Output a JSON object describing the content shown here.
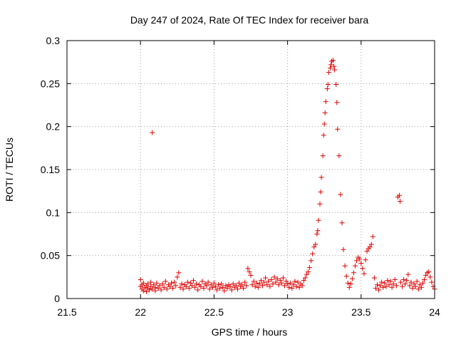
{
  "chart_data": {
    "type": "scatter",
    "title": "Day 247 of 2024, Rate Of TEC Index for receiver bara",
    "xlabel": "GPS time / hours",
    "ylabel": "ROTI / TECUs",
    "xlim": [
      21.5,
      24
    ],
    "ylim": [
      0,
      0.3
    ],
    "xticks": [
      21.5,
      22,
      22.5,
      23,
      23.5,
      24
    ],
    "xtick_labels": [
      "21.5",
      "22",
      "22.5",
      "23",
      "23.5",
      "24"
    ],
    "yticks": [
      0,
      0.05,
      0.1,
      0.15,
      0.2,
      0.25,
      0.3
    ],
    "ytick_labels": [
      "0",
      "0.05",
      "0.1",
      "0.15",
      "0.2",
      "0.25",
      "0.3"
    ],
    "grid": true,
    "marker": "+",
    "marker_color": "#e00000",
    "series": [
      {
        "points": [
          [
            22.0,
            0.014
          ],
          [
            22.0,
            0.022
          ],
          [
            22.01,
            0.011
          ],
          [
            22.01,
            0.016
          ],
          [
            22.02,
            0.009
          ],
          [
            22.02,
            0.018
          ],
          [
            22.03,
            0.013
          ],
          [
            22.04,
            0.015
          ],
          [
            22.04,
            0.008
          ],
          [
            22.05,
            0.012
          ],
          [
            22.05,
            0.017
          ],
          [
            22.06,
            0.01
          ],
          [
            22.07,
            0.014
          ],
          [
            22.07,
            0.019
          ],
          [
            22.08,
            0.011
          ],
          [
            22.08,
            0.193
          ],
          [
            22.09,
            0.016
          ],
          [
            22.1,
            0.013
          ],
          [
            22.1,
            0.009
          ],
          [
            22.11,
            0.018
          ],
          [
            22.12,
            0.012
          ],
          [
            22.13,
            0.015
          ],
          [
            22.14,
            0.01
          ],
          [
            22.15,
            0.017
          ],
          [
            22.16,
            0.013
          ],
          [
            22.17,
            0.02
          ],
          [
            22.18,
            0.011
          ],
          [
            22.19,
            0.016
          ],
          [
            22.2,
            0.014
          ],
          [
            22.21,
            0.018
          ],
          [
            22.22,
            0.012
          ],
          [
            22.23,
            0.019
          ],
          [
            22.24,
            0.015
          ],
          [
            22.25,
            0.025
          ],
          [
            22.26,
            0.03
          ],
          [
            22.27,
            0.013
          ],
          [
            22.28,
            0.017
          ],
          [
            22.29,
            0.011
          ],
          [
            22.3,
            0.016
          ],
          [
            22.31,
            0.014
          ],
          [
            22.32,
            0.019
          ],
          [
            22.33,
            0.012
          ],
          [
            22.34,
            0.018
          ],
          [
            22.35,
            0.015
          ],
          [
            22.36,
            0.021
          ],
          [
            22.37,
            0.013
          ],
          [
            22.38,
            0.017
          ],
          [
            22.39,
            0.01
          ],
          [
            22.4,
            0.016
          ],
          [
            22.41,
            0.014
          ],
          [
            22.42,
            0.02
          ],
          [
            22.43,
            0.012
          ],
          [
            22.44,
            0.017
          ],
          [
            22.45,
            0.015
          ],
          [
            22.46,
            0.019
          ],
          [
            22.47,
            0.011
          ],
          [
            22.48,
            0.016
          ],
          [
            22.49,
            0.013
          ],
          [
            22.5,
            0.018
          ],
          [
            22.51,
            0.014
          ],
          [
            22.52,
            0.01
          ],
          [
            22.53,
            0.016
          ],
          [
            22.54,
            0.012
          ],
          [
            22.55,
            0.017
          ],
          [
            22.56,
            0.013
          ],
          [
            22.57,
            0.009
          ],
          [
            22.58,
            0.015
          ],
          [
            22.59,
            0.012
          ],
          [
            22.6,
            0.016
          ],
          [
            22.61,
            0.014
          ],
          [
            22.62,
            0.01
          ],
          [
            22.63,
            0.017
          ],
          [
            22.64,
            0.013
          ],
          [
            22.65,
            0.015
          ],
          [
            22.66,
            0.011
          ],
          [
            22.67,
            0.018
          ],
          [
            22.68,
            0.014
          ],
          [
            22.69,
            0.016
          ],
          [
            22.7,
            0.012
          ],
          [
            22.71,
            0.019
          ],
          [
            22.72,
            0.015
          ],
          [
            22.73,
            0.035
          ],
          [
            22.74,
            0.031
          ],
          [
            22.75,
            0.027
          ],
          [
            22.76,
            0.016
          ],
          [
            22.77,
            0.02
          ],
          [
            22.78,
            0.014
          ],
          [
            22.79,
            0.018
          ],
          [
            22.8,
            0.013
          ],
          [
            22.81,
            0.017
          ],
          [
            22.82,
            0.021
          ],
          [
            22.83,
            0.015
          ],
          [
            22.84,
            0.019
          ],
          [
            22.85,
            0.024
          ],
          [
            22.86,
            0.016
          ],
          [
            22.87,
            0.02
          ],
          [
            22.88,
            0.014
          ],
          [
            22.89,
            0.022
          ],
          [
            22.9,
            0.017
          ],
          [
            22.91,
            0.025
          ],
          [
            22.92,
            0.019
          ],
          [
            22.93,
            0.023
          ],
          [
            22.94,
            0.016
          ],
          [
            22.95,
            0.021
          ],
          [
            22.96,
            0.018
          ],
          [
            22.97,
            0.024
          ],
          [
            22.98,
            0.015
          ],
          [
            22.99,
            0.02
          ],
          [
            23.0,
            0.017
          ],
          [
            23.01,
            0.013
          ],
          [
            23.02,
            0.018
          ],
          [
            23.03,
            0.012
          ],
          [
            23.04,
            0.016
          ],
          [
            23.05,
            0.02
          ],
          [
            23.06,
            0.014
          ],
          [
            23.07,
            0.019
          ],
          [
            23.08,
            0.013
          ],
          [
            23.09,
            0.017
          ],
          [
            23.1,
            0.015
          ],
          [
            23.11,
            0.021
          ],
          [
            23.12,
            0.024
          ],
          [
            23.13,
            0.028
          ],
          [
            23.14,
            0.031
          ],
          [
            23.15,
            0.036
          ],
          [
            23.16,
            0.044
          ],
          [
            23.17,
            0.052
          ],
          [
            23.18,
            0.06
          ],
          [
            23.19,
            0.063
          ],
          [
            23.2,
            0.075
          ],
          [
            23.205,
            0.079
          ],
          [
            23.21,
            0.091
          ],
          [
            23.22,
            0.11
          ],
          [
            23.225,
            0.124
          ],
          [
            23.23,
            0.141
          ],
          [
            23.24,
            0.166
          ],
          [
            23.245,
            0.19
          ],
          [
            23.25,
            0.203
          ],
          [
            23.255,
            0.216
          ],
          [
            23.26,
            0.229
          ],
          [
            23.27,
            0.244
          ],
          [
            23.275,
            0.249
          ],
          [
            23.28,
            0.263
          ],
          [
            23.29,
            0.268
          ],
          [
            23.295,
            0.272
          ],
          [
            23.3,
            0.276
          ],
          [
            23.31,
            0.277
          ],
          [
            23.315,
            0.27
          ],
          [
            23.32,
            0.266
          ],
          [
            23.33,
            0.249
          ],
          [
            23.335,
            0.228
          ],
          [
            23.34,
            0.197
          ],
          [
            23.35,
            0.166
          ],
          [
            23.36,
            0.121
          ],
          [
            23.37,
            0.088
          ],
          [
            23.38,
            0.057
          ],
          [
            23.39,
            0.038
          ],
          [
            23.4,
            0.026
          ],
          [
            23.41,
            0.018
          ],
          [
            23.42,
            0.013
          ],
          [
            23.43,
            0.017
          ],
          [
            23.44,
            0.023
          ],
          [
            23.45,
            0.03
          ],
          [
            23.46,
            0.038
          ],
          [
            23.47,
            0.044
          ],
          [
            23.48,
            0.048
          ],
          [
            23.49,
            0.046
          ],
          [
            23.5,
            0.041
          ],
          [
            23.51,
            0.035
          ],
          [
            23.52,
            0.029
          ],
          [
            23.53,
            0.045
          ],
          [
            23.54,
            0.055
          ],
          [
            23.55,
            0.058
          ],
          [
            23.56,
            0.06
          ],
          [
            23.57,
            0.063
          ],
          [
            23.58,
            0.072
          ],
          [
            23.59,
            0.024
          ],
          [
            23.6,
            0.012
          ],
          [
            23.61,
            0.016
          ],
          [
            23.62,
            0.01
          ],
          [
            23.63,
            0.015
          ],
          [
            23.64,
            0.019
          ],
          [
            23.65,
            0.013
          ],
          [
            23.66,
            0.018
          ],
          [
            23.67,
            0.014
          ],
          [
            23.68,
            0.021
          ],
          [
            23.69,
            0.016
          ],
          [
            23.7,
            0.02
          ],
          [
            23.71,
            0.013
          ],
          [
            23.72,
            0.017
          ],
          [
            23.73,
            0.022
          ],
          [
            23.74,
            0.015
          ],
          [
            23.75,
            0.118
          ],
          [
            23.76,
            0.12
          ],
          [
            23.765,
            0.113
          ],
          [
            23.77,
            0.019
          ],
          [
            23.78,
            0.014
          ],
          [
            23.79,
            0.022
          ],
          [
            23.8,
            0.017
          ],
          [
            23.81,
            0.021
          ],
          [
            23.82,
            0.028
          ],
          [
            23.83,
            0.015
          ],
          [
            23.84,
            0.019
          ],
          [
            23.85,
            0.012
          ],
          [
            23.86,
            0.017
          ],
          [
            23.87,
            0.014
          ],
          [
            23.88,
            0.02
          ],
          [
            23.89,
            0.011
          ],
          [
            23.9,
            0.016
          ],
          [
            23.91,
            0.013
          ],
          [
            23.92,
            0.018
          ],
          [
            23.93,
            0.022
          ],
          [
            23.94,
            0.027
          ],
          [
            23.95,
            0.03
          ],
          [
            23.96,
            0.031
          ],
          [
            23.97,
            0.025
          ],
          [
            23.98,
            0.019
          ],
          [
            23.99,
            0.014
          ],
          [
            24.0,
            0.011
          ]
        ]
      }
    ]
  }
}
